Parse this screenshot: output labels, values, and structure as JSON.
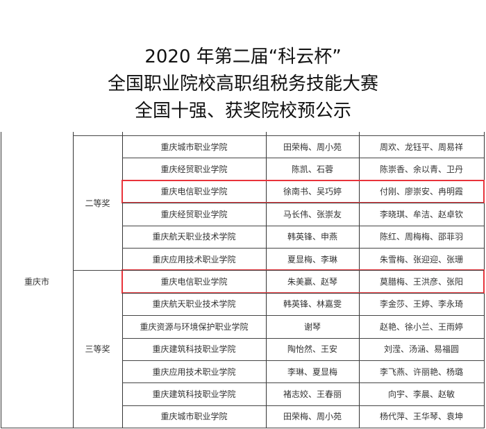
{
  "title": [
    "2020 年第二届“科云杯”",
    "全国职业院校高职组税务技能大赛",
    "全国十强、获奖院校预公示"
  ],
  "region": "重庆市",
  "groups": [
    {
      "award": "二等奖",
      "rows": [
        {
          "school": "重庆城市职业学院",
          "teachers": "田荣梅、周小苑",
          "students": "周欢、龙钰平、周易祥",
          "highlighted": false
        },
        {
          "school": "重庆经贸职业学院",
          "teachers": "陈凯、石蓉",
          "students": "陈崇香、余以青、卫丹",
          "highlighted": false
        },
        {
          "school": "重庆电信职业学院",
          "teachers": "徐南书、吴巧婷",
          "students": "付刚、廖崇安、冉明霞",
          "highlighted": true
        },
        {
          "school": "重庆经贸职业学院",
          "teachers": "马长伟、张崇友",
          "students": "李晓琪、牟洁、赵卓钦",
          "highlighted": false
        },
        {
          "school": "重庆航天职业技术学院",
          "teachers": "韩英锋、申燕",
          "students": "陈红、周梅梅、邵菲羽",
          "highlighted": false
        },
        {
          "school": "重庆应用技术职业学院",
          "teachers": "夏显梅、李琳",
          "students": "朱雪梅、张迎迎、张珊",
          "highlighted": false
        }
      ]
    },
    {
      "award": "三等奖",
      "rows": [
        {
          "school": "重庆电信职业学院",
          "teachers": "朱美赢、赵琴",
          "students": "莫腊梅、王洪彦、张阳",
          "highlighted": true
        },
        {
          "school": "重庆航天职业技术学院",
          "teachers": "韩英锋、林嘉雯",
          "students": "李金莎、王婷、李永琦",
          "highlighted": false
        },
        {
          "school": "重庆资源与环境保护职业学院",
          "teachers": "谢琴",
          "students": "赵艳、徐小兰、王雨婷",
          "highlighted": false
        },
        {
          "school": "重庆建筑科技职业学院",
          "teachers": "陶怡然、王安",
          "students": "刘滢、汤涵、易福圆",
          "highlighted": false
        },
        {
          "school": "重庆应用技术职业学院",
          "teachers": "李琳、夏显梅",
          "students": "李飞燕、许丽艳、杨璐",
          "highlighted": false
        },
        {
          "school": "重庆建筑科技职业学院",
          "teachers": "褚志姣、王春丽",
          "students": "向宇、李晨、赵敏",
          "highlighted": false
        },
        {
          "school": "重庆城市职业学院",
          "teachers": "田荣梅、周小苑",
          "students": "杨代萍、王华琴、袁坤",
          "highlighted": false
        }
      ]
    }
  ],
  "highlight_color": "#e8333a"
}
